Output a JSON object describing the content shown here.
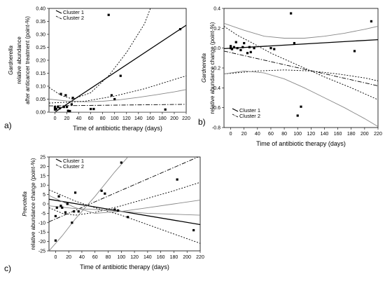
{
  "chart_data": [
    {
      "panel_label": "a)",
      "type": "scatter",
      "ylabel_lines": [
        "Gardnerella",
        "relative abundance",
        "after anticancer treatment (point-%)"
      ],
      "xlabel": "Time of antibiotic therapy (days)",
      "xlim": [
        -10,
        220
      ],
      "ylim": [
        0,
        0.4
      ],
      "xticks": [
        "0",
        "20",
        "40",
        "60",
        "80",
        "100",
        "120",
        "140",
        "160",
        "180",
        "200",
        "220"
      ],
      "yticks": [
        "0.00",
        "0.05",
        "0.10",
        "0.15",
        "0.20",
        "0.25",
        "0.30",
        "0.35",
        "0.40"
      ],
      "grid": false,
      "legend": [
        "Cluster 1",
        "Cluster 2"
      ],
      "legend_position": "top-left",
      "points": [
        [
          0,
          0.01
        ],
        [
          0,
          0.015
        ],
        [
          0,
          0.02
        ],
        [
          2,
          0.012
        ],
        [
          5,
          0.02
        ],
        [
          8,
          0.015
        ],
        [
          10,
          0.07
        ],
        [
          15,
          0.02
        ],
        [
          18,
          0.065
        ],
        [
          20,
          0.02
        ],
        [
          22,
          0.005
        ],
        [
          25,
          0.004
        ],
        [
          28,
          0.03
        ],
        [
          30,
          0.055
        ],
        [
          60,
          0.012
        ],
        [
          65,
          0.012
        ],
        [
          90,
          0.375
        ],
        [
          95,
          0.065
        ],
        [
          100,
          0.05
        ],
        [
          110,
          0.14
        ],
        [
          185,
          0.01
        ],
        [
          210,
          0.32
        ]
      ],
      "lines": [
        {
          "style": "solid",
          "color": "#000000",
          "x": [
            -10,
            220
          ],
          "y": [
            -0.015,
            0.335
          ]
        },
        {
          "style": "dotted",
          "color": "#000000",
          "x": [
            -10,
            10,
            30,
            60,
            90,
            120,
            150,
            160
          ],
          "y": [
            0.095,
            0.065,
            0.05,
            0.075,
            0.14,
            0.23,
            0.34,
            0.4
          ]
        },
        {
          "style": "dotted",
          "color": "#000000",
          "x": [
            -10,
            20,
            50,
            80,
            110,
            140,
            170,
            200,
            220
          ],
          "y": [
            0.0,
            0.0,
            0.0,
            0.0,
            0.0,
            0.0,
            0.0,
            0.0,
            0.0
          ]
        },
        {
          "style": "solid",
          "color": "#888888",
          "x": [
            -10,
            20,
            50,
            80,
            110,
            140,
            170,
            200,
            220
          ],
          "y": [
            0.05,
            0.043,
            0.04,
            0.042,
            0.048,
            0.057,
            0.067,
            0.078,
            0.087
          ]
        },
        {
          "style": "solid",
          "color": "#888888",
          "x": [
            -10,
            20,
            50,
            80,
            110,
            140,
            170,
            200,
            220
          ],
          "y": [
            0.0,
            0.0,
            0.0,
            0.0,
            0.0,
            0.0,
            0.0,
            0.0,
            0.0
          ]
        },
        {
          "style": "dashdot",
          "color": "#000000",
          "x": [
            -10,
            220
          ],
          "y": [
            0.024,
            0.03
          ]
        },
        {
          "style": "dotted",
          "color": "#000000",
          "x": [
            -10,
            50,
            100,
            150,
            220
          ],
          "y": [
            0.035,
            0.042,
            0.062,
            0.09,
            0.14
          ]
        }
      ]
    },
    {
      "panel_label": "b)",
      "type": "scatter",
      "ylabel_lines": [
        "Gardnerella",
        "relative abundance change (point-%)"
      ],
      "xlabel": "Time of antibiotic therapy (days)",
      "xlim": [
        -10,
        220
      ],
      "ylim": [
        -0.8,
        0.4
      ],
      "xticks": [
        "0",
        "20",
        "40",
        "60",
        "80",
        "100",
        "120",
        "140",
        "160",
        "180",
        "200",
        "220"
      ],
      "yticks": [
        "-0.8",
        "-0.6",
        "-0.4",
        "-0.2",
        "0.0",
        "0.2",
        "0.4"
      ],
      "grid": false,
      "legend": [
        "Cluster 1",
        "Cluster 2"
      ],
      "legend_position": "bottom-left",
      "points": [
        [
          0,
          0.02
        ],
        [
          0,
          0.0
        ],
        [
          2,
          -0.01
        ],
        [
          5,
          0.01
        ],
        [
          8,
          0.06
        ],
        [
          10,
          0.0
        ],
        [
          15,
          -0.02
        ],
        [
          18,
          0.01
        ],
        [
          20,
          0.05
        ],
        [
          25,
          -0.05
        ],
        [
          28,
          0.01
        ],
        [
          30,
          -0.04
        ],
        [
          35,
          0.0
        ],
        [
          60,
          0.0
        ],
        [
          65,
          -0.01
        ],
        [
          90,
          0.35
        ],
        [
          95,
          0.05
        ],
        [
          100,
          -0.68
        ],
        [
          105,
          -0.59
        ],
        [
          185,
          -0.03
        ],
        [
          210,
          0.27
        ]
      ],
      "lines": [
        {
          "style": "solid",
          "color": "#000000",
          "x": [
            -10,
            220
          ],
          "y": [
            -0.005,
            0.085
          ]
        },
        {
          "style": "dashdot",
          "color": "#000000",
          "x": [
            -10,
            220
          ],
          "y": [
            -0.03,
            -0.38
          ]
        },
        {
          "style": "dotted",
          "color": "#000000",
          "x": [
            -10,
            10,
            30,
            60,
            100,
            140,
            180,
            220
          ],
          "y": [
            0.22,
            0.13,
            0.06,
            -0.05,
            -0.17,
            -0.29,
            -0.4,
            -0.52
          ]
        },
        {
          "style": "dotted",
          "color": "#000000",
          "x": [
            -10,
            40,
            80,
            120,
            160,
            200,
            220
          ],
          "y": [
            -0.26,
            -0.23,
            -0.22,
            -0.23,
            -0.26,
            -0.3,
            -0.33
          ]
        },
        {
          "style": "solid",
          "color": "#888888",
          "x": [
            -10,
            20,
            50,
            80,
            110,
            140,
            170,
            200,
            220
          ],
          "y": [
            0.25,
            0.18,
            0.12,
            0.1,
            0.1,
            0.12,
            0.15,
            0.19,
            0.22
          ]
        },
        {
          "style": "solid",
          "color": "#888888",
          "x": [
            -10,
            20,
            50,
            80,
            110,
            140,
            170,
            200,
            220
          ],
          "y": [
            -0.26,
            -0.23,
            -0.25,
            -0.31,
            -0.4,
            -0.5,
            -0.6,
            -0.71,
            -0.79
          ]
        }
      ]
    },
    {
      "panel_label": "c)",
      "type": "scatter",
      "ylabel_lines": [
        "Prevotella",
        "relative abundance change (point-%)"
      ],
      "xlabel": "Time of antibiotic therapy (days)",
      "xlim": [
        -10,
        220
      ],
      "ylim": [
        -25,
        25
      ],
      "xticks": [
        "0",
        "20",
        "40",
        "60",
        "80",
        "100",
        "120",
        "140",
        "160",
        "180",
        "200",
        "220"
      ],
      "yticks": [
        "-25",
        "-20",
        "-15",
        "-10",
        "-5",
        "0",
        "5",
        "10",
        "15",
        "20",
        "25"
      ],
      "grid": false,
      "legend": [
        "Cluster 1",
        "Cluster 2"
      ],
      "legend_position": "top-left",
      "points": [
        [
          0,
          -19.5
        ],
        [
          0,
          -6.5
        ],
        [
          2,
          -2
        ],
        [
          5,
          4
        ],
        [
          8,
          -1
        ],
        [
          10,
          -2
        ],
        [
          15,
          -4.5
        ],
        [
          18,
          0
        ],
        [
          25,
          -10
        ],
        [
          28,
          -4
        ],
        [
          30,
          6
        ],
        [
          35,
          -4
        ],
        [
          70,
          7
        ],
        [
          75,
          5.5
        ],
        [
          90,
          -3
        ],
        [
          95,
          -3.5
        ],
        [
          100,
          22
        ],
        [
          110,
          -7
        ],
        [
          185,
          13
        ],
        [
          210,
          -14
        ]
      ],
      "lines": [
        {
          "style": "solid",
          "color": "#000000",
          "x": [
            -10,
            220
          ],
          "y": [
            2.5,
            -11
          ]
        },
        {
          "style": "dashdot",
          "color": "#000000",
          "x": [
            -10,
            220
          ],
          "y": [
            -9.5,
            25.5
          ]
        },
        {
          "style": "dotted",
          "color": "#000000",
          "x": [
            -10,
            10,
            30,
            60,
            100,
            140,
            180,
            220
          ],
          "y": [
            7.5,
            4.5,
            1.5,
            -2,
            -6,
            -11,
            -16,
            -21
          ]
        },
        {
          "style": "dotted",
          "color": "#000000",
          "x": [
            -10,
            10,
            30,
            60,
            100,
            140,
            180,
            220
          ],
          "y": [
            -2,
            -5,
            -6,
            -4.5,
            -1,
            3,
            7,
            11.5
          ]
        },
        {
          "style": "solid",
          "color": "#888888",
          "x": [
            -10,
            10,
            30,
            60,
            90,
            110
          ],
          "y": [
            -25,
            -17,
            -8,
            4,
            17,
            25
          ]
        },
        {
          "style": "solid",
          "color": "#888888",
          "x": [
            -10,
            30,
            60,
            100,
            140,
            180,
            220
          ],
          "y": [
            4.5,
            -2,
            -5,
            -4,
            -2,
            0,
            2
          ]
        },
        {
          "style": "solid",
          "color": "#888888",
          "x": [
            -10,
            30,
            60,
            100,
            140,
            180,
            220
          ],
          "y": [
            -1,
            -2.5,
            -3,
            -4,
            -5,
            -5.5,
            -6
          ]
        }
      ]
    }
  ]
}
